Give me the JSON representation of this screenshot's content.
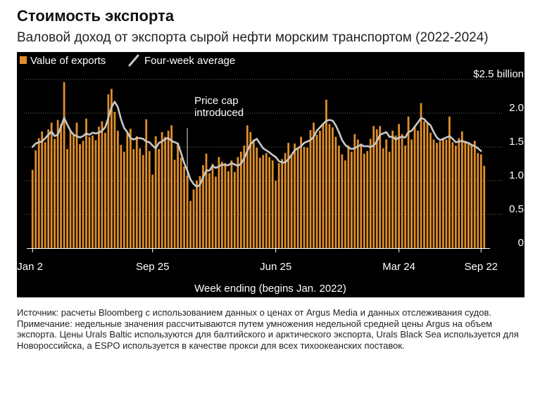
{
  "header": {
    "title": "Стоимость экспорта",
    "subtitle": "Валовой доход от экспорта сырой нефти морским транспортом (2022-2024)"
  },
  "colors": {
    "bar": "#e08e2a",
    "avg_line": "#c8c8c8",
    "panel_bg": "#000000",
    "text": "#ffffff",
    "grid": "#6a6a6a"
  },
  "chart_data": {
    "type": "bar",
    "legend": [
      {
        "label": "Value of exports",
        "marker": "square",
        "color": "#e08e2a"
      },
      {
        "label": "Four-week average",
        "marker": "line",
        "color": "#c8c8c8"
      }
    ],
    "legend_position": "top-left",
    "ylim": [
      0,
      2.5
    ],
    "y_ticks": [
      {
        "value": 2.5,
        "label": "$2.5 billion"
      },
      {
        "value": 2.0,
        "label": "2.0"
      },
      {
        "value": 1.5,
        "label": "1.5"
      },
      {
        "value": 1.0,
        "label": "1.0"
      },
      {
        "value": 0.5,
        "label": "0.5"
      },
      {
        "value": 0,
        "label": "0"
      }
    ],
    "x_ticks": [
      {
        "index": 0,
        "label": "Jan 2"
      },
      {
        "index": 38,
        "label": "Sep 25"
      },
      {
        "index": 77,
        "label": "Jun 25"
      },
      {
        "index": 116,
        "label": "Mar 24"
      },
      {
        "index": 142,
        "label": "Sep 22"
      }
    ],
    "xlabel": "Week ending (begins Jan. 2022)",
    "grid": true,
    "annotation": {
      "index": 49,
      "lines": [
        "Price cap",
        "introduced"
      ]
    },
    "series": [
      {
        "name": "Value of exports",
        "values": [
          1.16,
          1.45,
          1.63,
          1.73,
          1.57,
          1.76,
          1.86,
          1.62,
          1.9,
          1.84,
          2.46,
          1.47,
          1.73,
          1.68,
          1.86,
          1.54,
          1.59,
          1.92,
          1.65,
          1.67,
          1.6,
          1.8,
          1.88,
          1.71,
          2.28,
          2.36,
          2.02,
          1.74,
          1.53,
          1.43,
          1.71,
          1.77,
          1.47,
          1.66,
          1.48,
          1.38,
          1.91,
          1.44,
          1.09,
          1.66,
          1.47,
          1.72,
          1.65,
          1.74,
          1.82,
          1.31,
          1.56,
          1.34,
          1.21,
          1.07,
          0.7,
          0.87,
          1.0,
          1.07,
          1.23,
          1.4,
          1.11,
          1.25,
          1.06,
          1.35,
          1.28,
          1.26,
          1.14,
          1.3,
          1.13,
          1.35,
          1.43,
          1.52,
          1.82,
          1.72,
          1.61,
          1.49,
          1.34,
          1.38,
          1.41,
          1.35,
          1.3,
          1.0,
          1.26,
          1.32,
          1.41,
          1.56,
          1.38,
          1.55,
          1.49,
          1.65,
          1.5,
          1.49,
          1.75,
          1.86,
          1.68,
          1.74,
          1.85,
          2.2,
          1.84,
          1.79,
          1.65,
          1.52,
          1.39,
          1.3,
          1.52,
          1.43,
          1.69,
          1.61,
          1.55,
          1.4,
          1.44,
          1.62,
          1.81,
          1.76,
          1.81,
          1.48,
          1.61,
          1.43,
          1.74,
          1.67,
          1.84,
          1.69,
          1.52,
          1.95,
          1.61,
          1.8,
          1.74,
          2.15,
          1.88,
          1.86,
          1.71,
          1.61,
          1.56,
          1.58,
          1.62,
          1.61,
          1.95,
          1.57,
          1.52,
          1.63,
          1.73,
          1.59,
          1.57,
          1.54,
          1.59,
          1.41,
          1.39,
          1.22
        ]
      },
      {
        "name": "Four-week average",
        "values": [
          1.5,
          1.55,
          1.57,
          1.58,
          1.63,
          1.68,
          1.73,
          1.66,
          1.68,
          1.8,
          1.93,
          1.83,
          1.74,
          1.68,
          1.66,
          1.64,
          1.66,
          1.7,
          1.68,
          1.71,
          1.7,
          1.71,
          1.74,
          1.79,
          1.93,
          2.09,
          2.17,
          2.09,
          1.91,
          1.78,
          1.72,
          1.63,
          1.61,
          1.63,
          1.63,
          1.62,
          1.58,
          1.57,
          1.52,
          1.48,
          1.56,
          1.58,
          1.62,
          1.63,
          1.59,
          1.57,
          1.55,
          1.41,
          1.26,
          1.15,
          1.02,
          0.95,
          0.91,
          0.94,
          1.05,
          1.15,
          1.15,
          1.22,
          1.19,
          1.21,
          1.24,
          1.23,
          1.23,
          1.26,
          1.24,
          1.22,
          1.25,
          1.33,
          1.44,
          1.54,
          1.59,
          1.62,
          1.55,
          1.48,
          1.45,
          1.42,
          1.38,
          1.35,
          1.29,
          1.27,
          1.27,
          1.32,
          1.38,
          1.45,
          1.48,
          1.51,
          1.56,
          1.58,
          1.6,
          1.65,
          1.74,
          1.79,
          1.84,
          1.89,
          1.9,
          1.89,
          1.82,
          1.72,
          1.6,
          1.53,
          1.49,
          1.47,
          1.48,
          1.51,
          1.53,
          1.51,
          1.51,
          1.5,
          1.52,
          1.58,
          1.68,
          1.7,
          1.72,
          1.65,
          1.65,
          1.61,
          1.64,
          1.65,
          1.64,
          1.72,
          1.74,
          1.8,
          1.86,
          1.93,
          1.91,
          1.86,
          1.82,
          1.72,
          1.64,
          1.6,
          1.62,
          1.64,
          1.66,
          1.62,
          1.57,
          1.58,
          1.59,
          1.57,
          1.56,
          1.53,
          1.51,
          1.48,
          1.44
        ]
      }
    ]
  },
  "notes": {
    "source": "Источник: расчеты Bloomberg с использованием данных о ценах от Argus Media и данных отслеживания судов.",
    "note": "Примечание: недельные значения рассчитываются путем умножения недельной средней цены Argus на объем экспорта. Цены Urals Baltic используются для балтийского и арктического экспорта, Urals Black Sea используется для Новороссийска, а ESPO используется в качестве прокси для всех тихоокеанских поставок."
  }
}
